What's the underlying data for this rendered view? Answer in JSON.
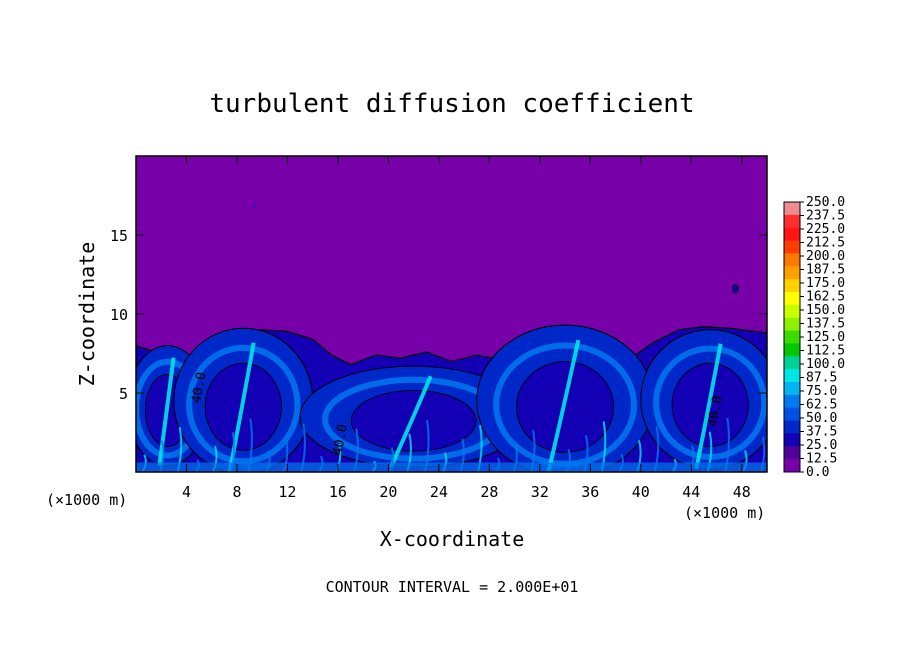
{
  "chart_data": {
    "type": "heatmap",
    "title": "turbulent diffusion coefficient",
    "xlabel": "X-coordinate",
    "ylabel": "Z-coordinate",
    "x_unit": "(×1000 m)",
    "x_unit_right": "(×1000 m)",
    "footer": "CONTOUR INTERVAL = 2.000E+01",
    "xlim": [
      0,
      50
    ],
    "ylim": [
      0,
      20
    ],
    "x_ticks": [
      "4",
      "8",
      "12",
      "16",
      "20",
      "24",
      "28",
      "32",
      "36",
      "40",
      "44",
      "48"
    ],
    "y_ticks": [
      "5",
      "10",
      "15"
    ],
    "contour_labels": [
      "40.0",
      "40.0",
      "40.0"
    ],
    "grid": false,
    "legend_position": "right",
    "colorbar": {
      "labels": [
        "250.0",
        "237.5",
        "225.0",
        "212.5",
        "200.0",
        "187.5",
        "175.0",
        "162.5",
        "150.0",
        "137.5",
        "125.0",
        "112.5",
        "100.0",
        "87.5",
        "75.0",
        "62.5",
        "50.0",
        "37.5",
        "25.0",
        "12.5",
        "0.0"
      ],
      "colors": [
        "#f08c8c",
        "#ff2e2e",
        "#ff1414",
        "#ff3c00",
        "#ff7800",
        "#ffa000",
        "#ffd000",
        "#ffff00",
        "#c8ff00",
        "#8cf000",
        "#3cdc00",
        "#00c800",
        "#00d296",
        "#00e6e6",
        "#00b4f0",
        "#0078f0",
        "#0050e6",
        "#0028c8",
        "#1400b4",
        "#500096",
        "#7800a8"
      ]
    },
    "field_colors": {
      "background": "#7800a8",
      "low": "#1400b4",
      "mid": "#0028c8",
      "high": "#0078f0",
      "peak": "#00e6e6"
    },
    "features": [
      {
        "name": "left-eddy",
        "cx": 2.5,
        "cz": 4.2,
        "rx": 3.2,
        "rz": 3.8,
        "value": 40
      },
      {
        "name": "mid-left-eddy",
        "cx": 8.5,
        "cz": 4.5,
        "rx": 5.5,
        "rz": 4.6,
        "value": 40
      },
      {
        "name": "center-turbulence",
        "cx": 22,
        "cz": 3.5,
        "rx": 9,
        "rz": 3.2,
        "value": 35
      },
      {
        "name": "right-eddy",
        "cx": 34,
        "cz": 4.5,
        "rx": 7,
        "rz": 4.8,
        "value": 50
      },
      {
        "name": "far-right-eddy",
        "cx": 45.5,
        "cz": 4.6,
        "rx": 5.5,
        "rz": 4.4,
        "value": 40
      }
    ]
  }
}
